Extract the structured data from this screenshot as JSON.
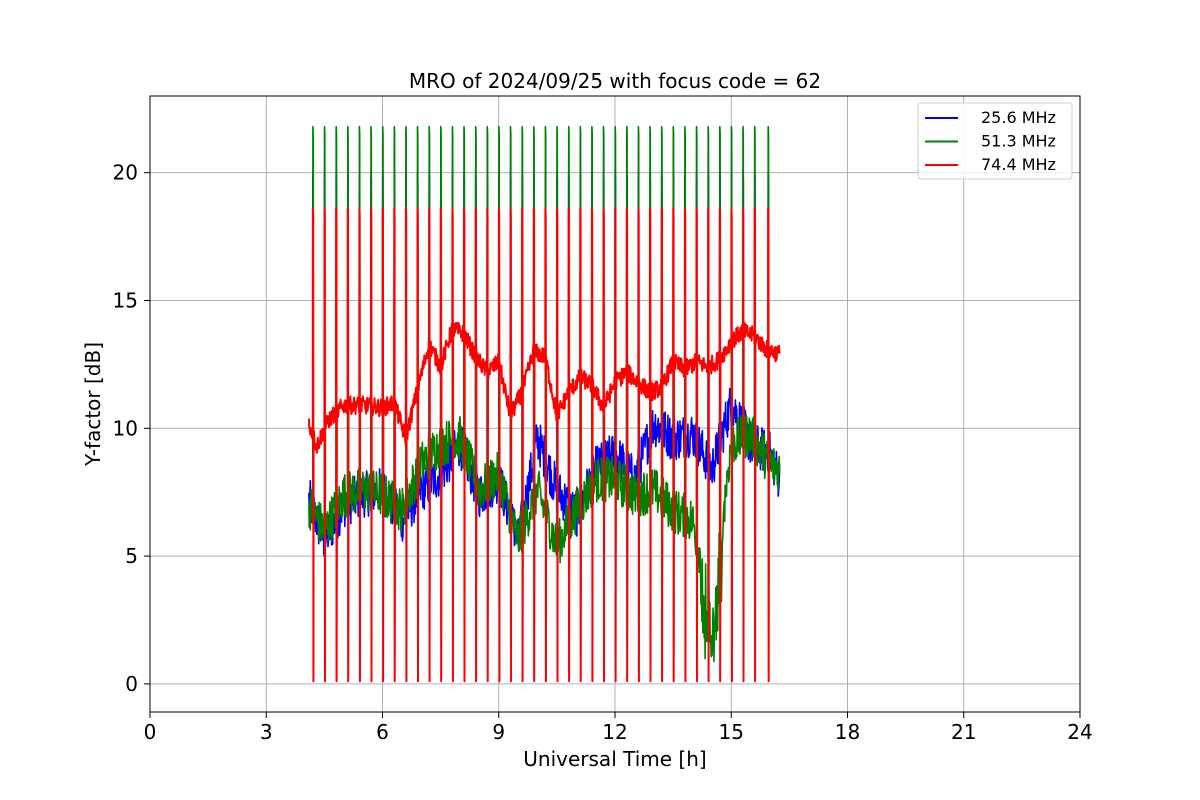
{
  "chart_data": {
    "type": "line",
    "title": "MRO of 2024/09/25 with focus code = 62",
    "xlabel": "Universal Time [h]",
    "ylabel": "Y-factor [dB]",
    "xlim": [
      0,
      24
    ],
    "ylim": [
      -1.1,
      23
    ],
    "xticks": [
      0,
      3,
      6,
      9,
      12,
      15,
      18,
      21,
      24
    ],
    "xtick_labels": [
      "0",
      "3",
      "6",
      "9",
      "12",
      "15",
      "18",
      "21",
      "24"
    ],
    "yticks": [
      0,
      5,
      10,
      15,
      20
    ],
    "ytick_labels": [
      "0",
      "5",
      "10",
      "15",
      "20"
    ],
    "grid": true,
    "legend_position": "top-right",
    "spike_times": [
      4.2,
      4.5,
      4.8,
      5.1,
      5.4,
      5.7,
      6.0,
      6.3,
      6.6,
      6.9,
      7.2,
      7.5,
      7.8,
      8.1,
      8.4,
      8.7,
      9.0,
      9.3,
      9.6,
      9.9,
      10.2,
      10.5,
      10.8,
      11.1,
      11.4,
      11.7,
      12.0,
      12.3,
      12.6,
      12.9,
      13.2,
      13.5,
      13.8,
      14.1,
      14.4,
      14.7,
      15.0,
      15.3,
      15.6,
      15.95
    ],
    "series": [
      {
        "name": "25.6 MHz",
        "color": "#0000ff",
        "spike_peak": 20.0,
        "spike_floor": 0.1,
        "x": [
          4.1,
          4.5,
          5.0,
          5.5,
          6.0,
          6.5,
          7.0,
          7.5,
          8.0,
          8.5,
          9.0,
          9.5,
          10.0,
          10.5,
          11.0,
          11.5,
          12.0,
          12.5,
          13.0,
          13.5,
          14.0,
          14.5,
          15.0,
          15.5,
          16.0,
          16.25
        ],
        "y": [
          7.2,
          5.6,
          7.0,
          7.4,
          7.6,
          6.4,
          7.6,
          8.2,
          9.4,
          7.4,
          8.0,
          5.6,
          9.6,
          7.6,
          6.6,
          8.4,
          9.0,
          8.0,
          10.2,
          9.6,
          9.8,
          8.4,
          11.0,
          9.4,
          9.0,
          8.0
        ]
      },
      {
        "name": "51.3 MHz",
        "color": "#008000",
        "spike_peak": 21.8,
        "spike_floor": 1.6,
        "x": [
          4.1,
          4.5,
          5.0,
          5.5,
          6.0,
          6.5,
          7.0,
          7.5,
          8.0,
          8.5,
          9.0,
          9.5,
          10.0,
          10.5,
          11.0,
          11.5,
          12.0,
          12.5,
          13.0,
          13.5,
          14.0,
          14.5,
          15.0,
          15.5,
          16.0,
          16.25
        ],
        "y": [
          7.0,
          6.0,
          7.4,
          7.6,
          7.4,
          6.8,
          8.6,
          9.4,
          9.6,
          7.6,
          8.2,
          5.6,
          7.6,
          5.4,
          6.8,
          8.0,
          8.0,
          7.4,
          7.6,
          6.8,
          6.4,
          3.0,
          9.4,
          9.8,
          8.6,
          8.4
        ]
      },
      {
        "name": "74.4 MHz",
        "color": "#ff0000",
        "spike_peak": 18.6,
        "spike_floor": 0.1,
        "x": [
          4.1,
          4.3,
          4.6,
          5.0,
          5.5,
          6.0,
          6.3,
          6.6,
          6.9,
          7.2,
          7.5,
          7.8,
          8.1,
          8.4,
          8.7,
          9.0,
          9.3,
          9.6,
          9.9,
          10.2,
          10.5,
          10.8,
          11.1,
          11.4,
          11.7,
          12.0,
          12.3,
          12.6,
          12.9,
          13.2,
          13.5,
          13.8,
          14.1,
          14.4,
          14.7,
          15.0,
          15.3,
          15.6,
          15.9,
          16.25
        ],
        "y": [
          10.2,
          9.3,
          10.3,
          10.9,
          10.9,
          10.8,
          11.0,
          9.6,
          11.5,
          13.3,
          12.4,
          13.9,
          13.7,
          12.8,
          12.2,
          12.6,
          10.5,
          11.4,
          13.0,
          12.8,
          10.5,
          11.4,
          12.0,
          11.7,
          10.8,
          11.8,
          12.2,
          11.8,
          11.4,
          11.6,
          12.6,
          12.3,
          12.6,
          12.4,
          12.7,
          13.4,
          13.8,
          13.6,
          13.1,
          12.9
        ]
      }
    ]
  }
}
